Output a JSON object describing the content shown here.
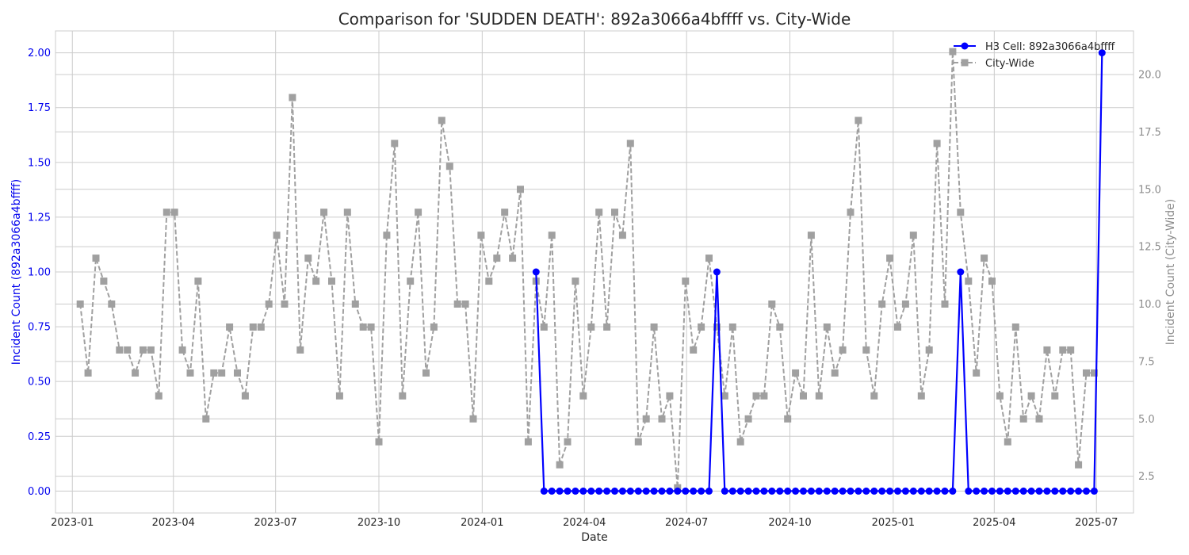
{
  "chart_data": {
    "type": "line",
    "title": "Comparison for 'SUDDEN DEATH': 892a3066a4bffff vs. City-Wide",
    "xlabel": "Date",
    "ylabel_left": "Incident Count (892a3066a4bffff)",
    "ylabel_right": "Incident Count (City-Wide)",
    "xlim": [
      "2022-12-17",
      "2025-08-03"
    ],
    "ylim_left": [
      -0.1,
      2.1
    ],
    "ylim_right": [
      0.9,
      21.9
    ],
    "x_ticks": [
      "2023-01",
      "2023-04",
      "2023-07",
      "2023-10",
      "2024-01",
      "2024-04",
      "2024-07",
      "2024-10",
      "2025-01",
      "2025-04",
      "2025-07"
    ],
    "y_ticks_left": [
      "0.00",
      "0.25",
      "0.50",
      "0.75",
      "1.00",
      "1.25",
      "1.50",
      "1.75",
      "2.00"
    ],
    "y_ticks_right": [
      "2.5",
      "5.0",
      "7.5",
      "10.0",
      "12.5",
      "15.0",
      "17.5",
      "20.0"
    ],
    "grid": true,
    "legend_position": "top-right",
    "colors": {
      "h3": "#0000ff",
      "city": "#a0a0a0"
    },
    "series": [
      {
        "name": "H3 Cell: 892a3066a4bffff",
        "axis": "left",
        "style": "solid line, circle markers",
        "start_date": "2024-02-18",
        "step_days": 7,
        "values": [
          1,
          0,
          0,
          0,
          0,
          0,
          0,
          0,
          0,
          0,
          0,
          0,
          0,
          0,
          0,
          0,
          0,
          0,
          0,
          0,
          0,
          0,
          0,
          1,
          0,
          0,
          0,
          0,
          0,
          0,
          0,
          0,
          0,
          0,
          0,
          0,
          0,
          0,
          0,
          0,
          0,
          0,
          0,
          0,
          0,
          0,
          0,
          0,
          0,
          0,
          0,
          0,
          0,
          0,
          1,
          0,
          0,
          0,
          0,
          0,
          0,
          0,
          0,
          0,
          0,
          0,
          0,
          0,
          0,
          0,
          0,
          0,
          2
        ]
      },
      {
        "name": "City-Wide",
        "axis": "right",
        "style": "dashed line, square markers",
        "points": [
          [
            "2023-01-08",
            10
          ],
          [
            "2023-01-15",
            7
          ],
          [
            "2023-01-22",
            12
          ],
          [
            "2023-01-29",
            11
          ],
          [
            "2023-02-05",
            10
          ],
          [
            "2023-02-12",
            8
          ],
          [
            "2023-02-19",
            8
          ],
          [
            "2023-02-26",
            7
          ],
          [
            "2023-03-05",
            8
          ],
          [
            "2023-03-12",
            8
          ],
          [
            "2023-03-19",
            6
          ],
          [
            "2023-03-26",
            14
          ],
          [
            "2023-04-02",
            14
          ],
          [
            "2023-04-09",
            8
          ],
          [
            "2023-04-16",
            7
          ],
          [
            "2023-04-23",
            11
          ],
          [
            "2023-04-30",
            5
          ],
          [
            "2023-05-07",
            7
          ],
          [
            "2023-05-14",
            7
          ],
          [
            "2023-05-21",
            9
          ],
          [
            "2023-05-28",
            7
          ],
          [
            "2023-06-04",
            6
          ],
          [
            "2023-06-11",
            9
          ],
          [
            "2023-06-18",
            9
          ],
          [
            "2023-06-25",
            10
          ],
          [
            "2023-07-02",
            13
          ],
          [
            "2023-07-09",
            10
          ],
          [
            "2023-07-16",
            19
          ],
          [
            "2023-07-23",
            8
          ],
          [
            "2023-07-30",
            12
          ],
          [
            "2023-08-06",
            11
          ],
          [
            "2023-08-13",
            14
          ],
          [
            "2023-08-20",
            11
          ],
          [
            "2023-08-27",
            6
          ],
          [
            "2023-09-03",
            14
          ],
          [
            "2023-09-10",
            10
          ],
          [
            "2023-09-17",
            9
          ],
          [
            "2023-09-24",
            9
          ],
          [
            "2023-10-01",
            4
          ],
          [
            "2023-10-08",
            13
          ],
          [
            "2023-10-15",
            17
          ],
          [
            "2023-10-22",
            6
          ],
          [
            "2023-10-29",
            11
          ],
          [
            "2023-11-05",
            14
          ],
          [
            "2023-11-12",
            7
          ],
          [
            "2023-11-19",
            9
          ],
          [
            "2023-11-26",
            18
          ],
          [
            "2023-12-03",
            16
          ],
          [
            "2023-12-10",
            10
          ],
          [
            "2023-12-17",
            10
          ],
          [
            "2023-12-24",
            5
          ],
          [
            "2023-12-31",
            13
          ],
          [
            "2024-01-07",
            11
          ],
          [
            "2024-01-14",
            12
          ],
          [
            "2024-01-21",
            14
          ],
          [
            "2024-01-28",
            12
          ],
          [
            "2024-02-04",
            15
          ],
          [
            "2024-02-11",
            4
          ],
          [
            "2024-02-18",
            11
          ],
          [
            "2024-02-25",
            9
          ],
          [
            "2024-03-03",
            13
          ],
          [
            "2024-03-10",
            3
          ],
          [
            "2024-03-17",
            4
          ],
          [
            "2024-03-24",
            11
          ],
          [
            "2024-03-31",
            6
          ],
          [
            "2024-04-07",
            9
          ],
          [
            "2024-04-14",
            14
          ],
          [
            "2024-04-21",
            9
          ],
          [
            "2024-04-28",
            14
          ],
          [
            "2024-05-05",
            13
          ],
          [
            "2024-05-12",
            17
          ],
          [
            "2024-05-19",
            4
          ],
          [
            "2024-05-26",
            5
          ],
          [
            "2024-06-02",
            9
          ],
          [
            "2024-06-09",
            5
          ],
          [
            "2024-06-16",
            6
          ],
          [
            "2024-06-23",
            2
          ],
          [
            "2024-06-30",
            11
          ],
          [
            "2024-07-07",
            8
          ],
          [
            "2024-07-14",
            9
          ],
          [
            "2024-07-21",
            12
          ],
          [
            "2024-07-28",
            9
          ],
          [
            "2024-08-04",
            6
          ],
          [
            "2024-08-11",
            9
          ],
          [
            "2024-08-18",
            4
          ],
          [
            "2024-08-25",
            5
          ],
          [
            "2024-09-01",
            6
          ],
          [
            "2024-09-08",
            6
          ],
          [
            "2024-09-15",
            10
          ],
          [
            "2024-09-22",
            9
          ],
          [
            "2024-09-29",
            5
          ],
          [
            "2024-10-06",
            7
          ],
          [
            "2024-10-13",
            6
          ],
          [
            "2024-10-20",
            13
          ],
          [
            "2024-10-27",
            6
          ],
          [
            "2024-11-03",
            9
          ],
          [
            "2024-11-10",
            7
          ],
          [
            "2024-11-17",
            8
          ],
          [
            "2024-11-24",
            14
          ],
          [
            "2024-12-01",
            18
          ],
          [
            "2024-12-08",
            8
          ],
          [
            "2024-12-15",
            6
          ],
          [
            "2024-12-22",
            10
          ],
          [
            "2024-12-29",
            12
          ],
          [
            "2025-01-05",
            9
          ],
          [
            "2025-01-12",
            10
          ],
          [
            "2025-01-19",
            13
          ],
          [
            "2025-01-26",
            6
          ],
          [
            "2025-02-02",
            8
          ],
          [
            "2025-02-09",
            17
          ],
          [
            "2025-02-16",
            10
          ],
          [
            "2025-02-23",
            21
          ],
          [
            "2025-03-02",
            14
          ],
          [
            "2025-03-09",
            11
          ],
          [
            "2025-03-16",
            7
          ],
          [
            "2025-03-23",
            12
          ],
          [
            "2025-03-30",
            11
          ],
          [
            "2025-04-06",
            6
          ],
          [
            "2025-04-13",
            4
          ],
          [
            "2025-04-20",
            9
          ],
          [
            "2025-04-27",
            5
          ],
          [
            "2025-05-04",
            6
          ],
          [
            "2025-05-11",
            5
          ],
          [
            "2025-05-18",
            8
          ],
          [
            "2025-05-25",
            6
          ],
          [
            "2025-06-01",
            8
          ],
          [
            "2025-06-08",
            8
          ],
          [
            "2025-06-15",
            3
          ],
          [
            "2025-06-22",
            7
          ],
          [
            "2025-06-29",
            7
          ]
        ]
      }
    ]
  }
}
